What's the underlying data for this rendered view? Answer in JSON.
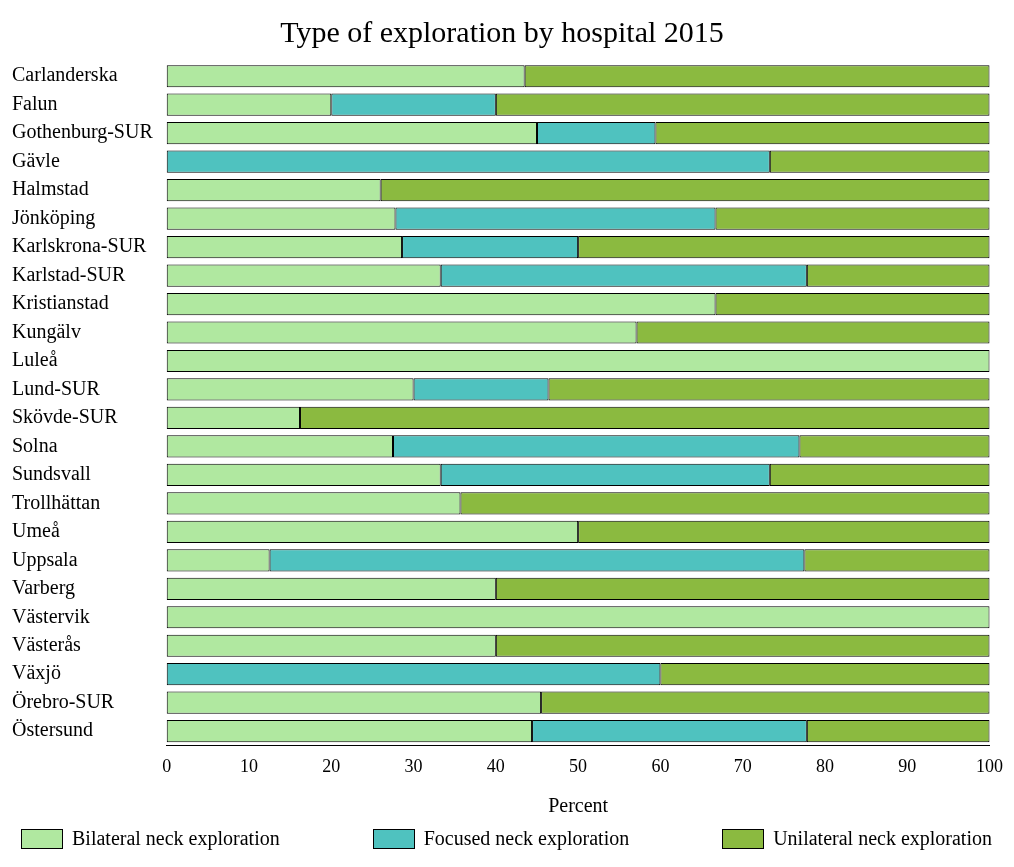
{
  "chart_data": {
    "type": "bar",
    "title": "Type of exploration by hospital 2015",
    "xlabel": "Percent",
    "orientation": "horizontal",
    "stacked": true,
    "legend": "bottom",
    "grid": false,
    "categories": [
      "Carlanderska",
      "Falun",
      "Gothenburg-SUR",
      "Gävle",
      "Halmstad",
      "Jönköping",
      "Karlskrona-SUR",
      "Karlstad-SUR",
      "Kristianstad",
      "Kungälv",
      "Luleå",
      "Lund-SUR",
      "Skövde-SUR",
      "Solna",
      "Sundsvall",
      "Trollhättan",
      "Umeå",
      "Uppsala",
      "Varberg",
      "Västervik",
      "Västerås",
      "Växjö",
      "Örebro-SUR",
      "Östersund"
    ],
    "xlim": [
      0,
      100
    ],
    "xticks": [
      0,
      10,
      20,
      30,
      40,
      50,
      60,
      70,
      80,
      90,
      100
    ],
    "series": [
      {
        "name": "Bilateral neck exploration",
        "color": "#b0e8a0",
        "values": [
          43.5,
          20,
          45,
          0,
          26,
          27.8,
          28.6,
          33.3,
          66.7,
          57.1,
          100,
          30,
          16.2,
          27.5,
          33.3,
          35.7,
          50,
          12.5,
          40,
          100,
          40,
          0,
          45.5,
          44.4
        ]
      },
      {
        "name": "Focused neck exploration",
        "color": "#4fc2bf",
        "values": [
          0,
          20,
          14.4,
          73.3,
          0,
          38.9,
          21.4,
          44.5,
          0,
          0,
          0,
          16.4,
          0,
          49.4,
          40,
          0,
          0,
          65,
          0,
          0,
          0,
          60,
          0,
          33.4
        ]
      },
      {
        "name": "Unilateral neck exploration",
        "color": "#8bba40",
        "values": [
          56.5,
          60,
          40.6,
          26.7,
          74,
          33.3,
          50,
          22.2,
          33.3,
          42.9,
          0,
          53.6,
          83.8,
          23.1,
          26.7,
          64.3,
          50,
          22.5,
          60,
          0,
          60,
          40,
          54.5,
          22.2
        ]
      }
    ]
  }
}
